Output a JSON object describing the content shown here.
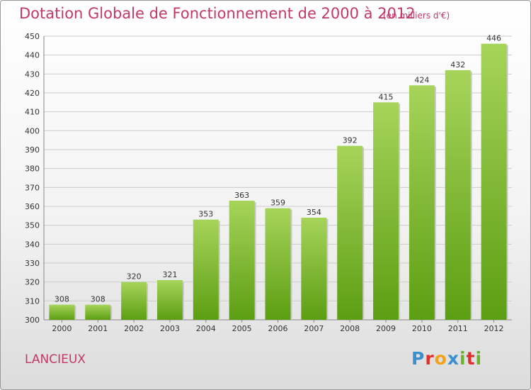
{
  "title": "Dotation Globale de Fonctionnement de 2000 à 2012",
  "subtitle": "(en milliers d'€)",
  "commune": "LANCIEUX",
  "logo": {
    "letters": [
      {
        "char": "P",
        "color": "#3a8fd0"
      },
      {
        "char": "r",
        "color": "#e0302a"
      },
      {
        "char": "o",
        "color": "#f3a21b"
      },
      {
        "char": "x",
        "color": "#3a8fd0"
      },
      {
        "char": "i",
        "color": "#6bb42c"
      },
      {
        "char": "t",
        "color": "#e0302a"
      },
      {
        "char": "i",
        "color": "#6bb42c"
      }
    ]
  },
  "chart_data": {
    "type": "bar",
    "categories": [
      "2000",
      "2001",
      "2002",
      "2003",
      "2004",
      "2005",
      "2006",
      "2007",
      "2008",
      "2009",
      "2010",
      "2011",
      "2012"
    ],
    "values": [
      308,
      308,
      320,
      321,
      353,
      363,
      359,
      354,
      392,
      415,
      424,
      432,
      446
    ],
    "ylim": [
      300,
      450
    ],
    "yticks": [
      300,
      310,
      320,
      330,
      340,
      350,
      360,
      370,
      380,
      390,
      400,
      410,
      420,
      430,
      440,
      450
    ],
    "grid": true,
    "colors": {
      "bar_top": "#a6d45a",
      "bar_bottom": "#5c9e12",
      "grid": "#cccccc"
    }
  }
}
